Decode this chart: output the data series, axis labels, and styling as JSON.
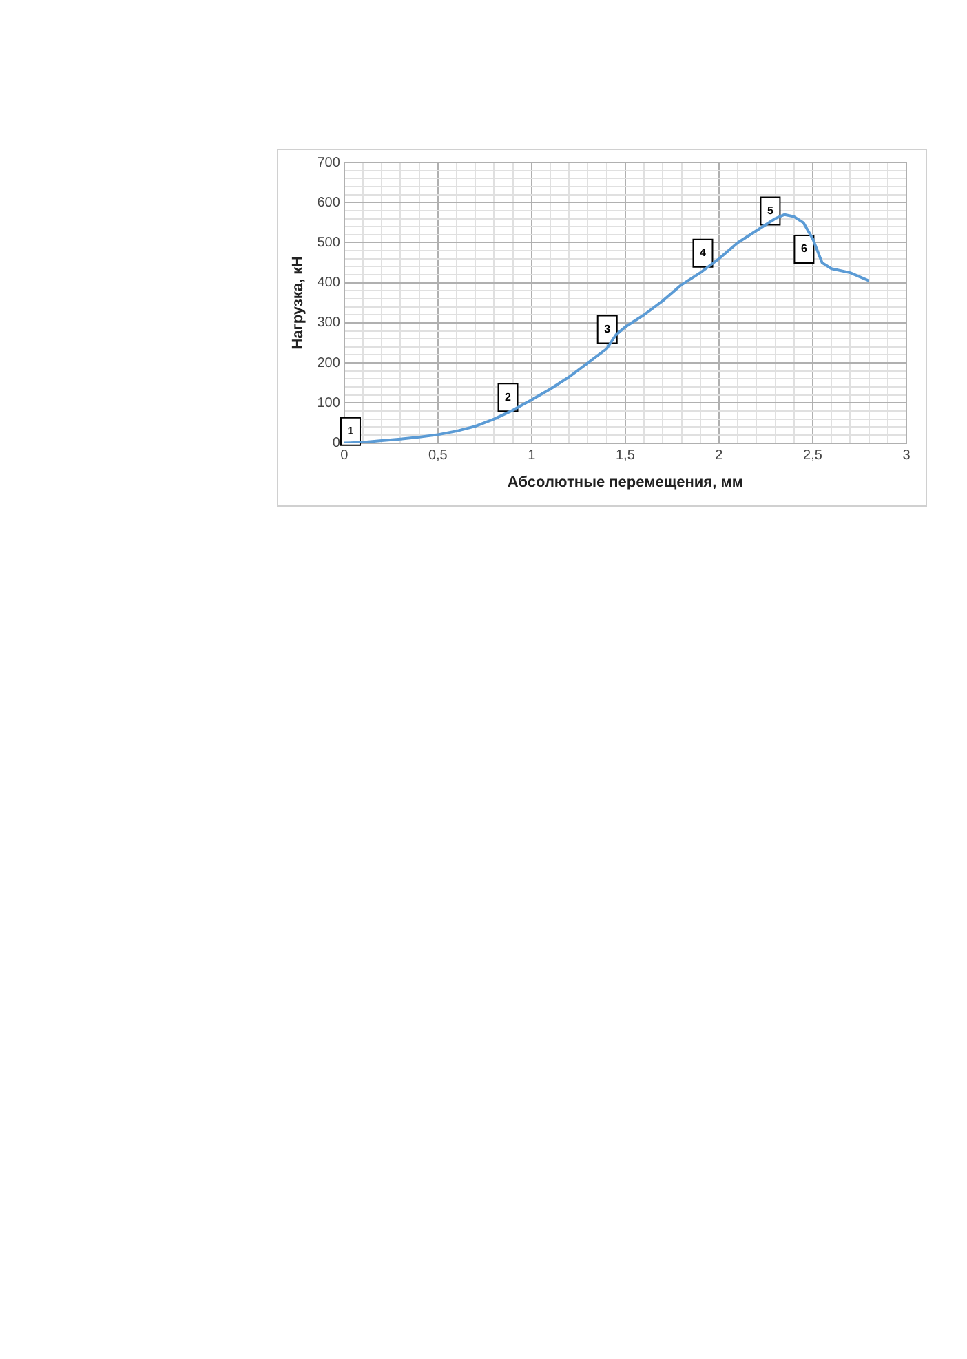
{
  "chart_data": {
    "type": "line",
    "xlabel": "Абсолютные перемещения, мм",
    "ylabel": "Нагрузка, кН",
    "x": [
      0,
      0.1,
      0.2,
      0.3,
      0.4,
      0.5,
      0.6,
      0.7,
      0.8,
      0.9,
      1.0,
      1.1,
      1.2,
      1.3,
      1.4,
      1.45,
      1.5,
      1.6,
      1.7,
      1.8,
      1.9,
      2.0,
      2.1,
      2.2,
      2.3,
      2.35,
      2.4,
      2.45,
      2.5,
      2.55,
      2.6,
      2.7,
      2.8
    ],
    "series": [
      {
        "color": "#5b9bd5",
        "values": [
          0,
          2,
          6,
          10,
          15,
          21,
          30,
          42,
          60,
          82,
          108,
          135,
          165,
          200,
          235,
          270,
          290,
          320,
          355,
          395,
          425,
          460,
          500,
          530,
          560,
          570,
          565,
          550,
          510,
          450,
          435,
          425,
          405
        ]
      }
    ],
    "xlim": [
      0,
      3
    ],
    "ylim": [
      0,
      700
    ],
    "xticks": [
      0,
      {
        "value": 0.1,
        "label": null
      },
      {
        "value": 0.2,
        "label": null
      },
      {
        "value": 0.3,
        "label": null
      },
      {
        "value": 0.4,
        "label": null
      },
      {
        "value": 0.5,
        "label": "0,5"
      },
      {
        "value": 0.6,
        "label": null
      },
      {
        "value": 0.7,
        "label": null
      },
      {
        "value": 0.8,
        "label": null
      },
      {
        "value": 0.9,
        "label": null
      },
      1,
      {
        "value": 1.1,
        "label": null
      },
      {
        "value": 1.2,
        "label": null
      },
      {
        "value": 1.3,
        "label": null
      },
      {
        "value": 1.4,
        "label": null
      },
      {
        "value": 1.5,
        "label": "1,5"
      },
      {
        "value": 1.6,
        "label": null
      },
      {
        "value": 1.7,
        "label": null
      },
      {
        "value": 1.8,
        "label": null
      },
      {
        "value": 1.9,
        "label": null
      },
      2,
      {
        "value": 2.1,
        "label": null
      },
      {
        "value": 2.2,
        "label": null
      },
      {
        "value": 2.3,
        "label": null
      },
      {
        "value": 2.4,
        "label": null
      },
      {
        "value": 2.5,
        "label": "2,5"
      },
      {
        "value": 2.6,
        "label": null
      },
      {
        "value": 2.7,
        "label": null
      },
      {
        "value": 2.8,
        "label": null
      },
      {
        "value": 2.9,
        "label": null
      },
      3
    ],
    "yticks": [
      0,
      {
        "value": 20,
        "label": null
      },
      {
        "value": 40,
        "label": null
      },
      {
        "value": 60,
        "label": null
      },
      {
        "value": 80,
        "label": null
      },
      100,
      {
        "value": 120,
        "label": null
      },
      {
        "value": 140,
        "label": null
      },
      {
        "value": 160,
        "label": null
      },
      {
        "value": 180,
        "label": null
      },
      200,
      {
        "value": 220,
        "label": null
      },
      {
        "value": 240,
        "label": null
      },
      {
        "value": 260,
        "label": null
      },
      {
        "value": 280,
        "label": null
      },
      300,
      {
        "value": 320,
        "label": null
      },
      {
        "value": 340,
        "label": null
      },
      {
        "value": 360,
        "label": null
      },
      {
        "value": 380,
        "label": null
      },
      400,
      {
        "value": 420,
        "label": null
      },
      {
        "value": 440,
        "label": null
      },
      {
        "value": 460,
        "label": null
      },
      {
        "value": 480,
        "label": null
      },
      500,
      {
        "value": 520,
        "label": null
      },
      {
        "value": 540,
        "label": null
      },
      {
        "value": 560,
        "label": null
      },
      {
        "value": 580,
        "label": null
      },
      600,
      {
        "value": 620,
        "label": null
      },
      {
        "value": 640,
        "label": null
      },
      {
        "value": 660,
        "label": null
      },
      {
        "value": 680,
        "label": null
      },
      700
    ],
    "grid": true,
    "legend": false,
    "annotations": [
      {
        "text": "1",
        "x": 0.1,
        "y": 15
      },
      {
        "text": "2",
        "x": 0.94,
        "y": 100
      },
      {
        "text": "3",
        "x": 1.47,
        "y": 270
      },
      {
        "text": "4",
        "x": 1.98,
        "y": 460
      },
      {
        "text": "5",
        "x": 2.34,
        "y": 565
      },
      {
        "text": "6",
        "x": 2.52,
        "y": 470
      }
    ]
  }
}
